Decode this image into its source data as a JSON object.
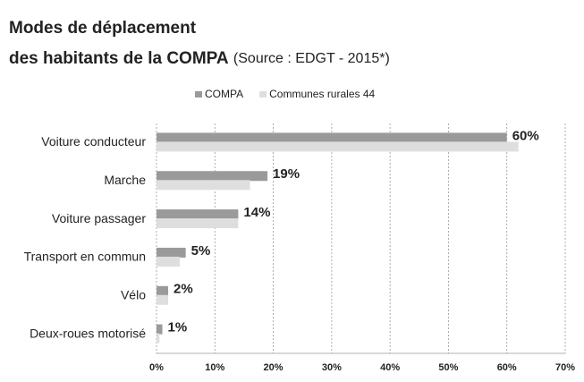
{
  "chart_data": {
    "type": "hbar",
    "title_lines": [
      "Modes de déplacement",
      "des habitants de la COMPA"
    ],
    "subtitle": "(Source : EDGT - 2015*)",
    "categories": [
      "Voiture conducteur",
      "Marche",
      "Voiture passager",
      "Transport en commun",
      "Vélo",
      "Deux-roues motorisé"
    ],
    "series": [
      {
        "name": "COMPA",
        "color": "#9a9a9a",
        "values": [
          60,
          19,
          14,
          5,
          2,
          1
        ],
        "value_labels": [
          "60%",
          "19%",
          "14%",
          "5%",
          "2%",
          "1%"
        ]
      },
      {
        "name": "Communes rurales 44",
        "color": "#dedede",
        "values": [
          62,
          16,
          14,
          4,
          2,
          0.5
        ]
      }
    ],
    "xlim": [
      0,
      70
    ],
    "xticks": [
      {
        "value": 0,
        "label": "0%"
      },
      {
        "value": 10,
        "label": "10%"
      },
      {
        "value": 20,
        "label": "20%"
      },
      {
        "value": 30,
        "label": "30%"
      },
      {
        "value": 40,
        "label": "40%"
      },
      {
        "value": 50,
        "label": "50%"
      },
      {
        "value": 60,
        "label": "60%"
      },
      {
        "value": 70,
        "label": "70%"
      }
    ],
    "grid": true
  }
}
